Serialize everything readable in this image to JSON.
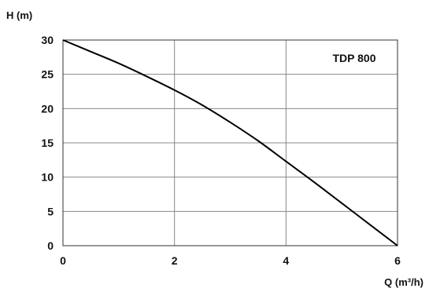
{
  "chart_data": {
    "type": "line",
    "title": "",
    "annotation": "TDP 800",
    "xlabel": "Q (m³/h)",
    "ylabel": "H (m)",
    "xlim": [
      0,
      6
    ],
    "ylim": [
      0,
      30
    ],
    "xticks": [
      "0",
      "2",
      "4",
      "6"
    ],
    "yticks": [
      "0",
      "5",
      "10",
      "15",
      "20",
      "25",
      "30"
    ],
    "grid": true,
    "series": [
      {
        "color": "#000000",
        "x": [
          0,
          0.5,
          1,
          1.5,
          2,
          2.5,
          3,
          3.5,
          4,
          4.5,
          5,
          5.5,
          6
        ],
        "y": [
          30,
          28.3,
          26.6,
          24.7,
          22.7,
          20.5,
          18,
          15.3,
          12.3,
          9.3,
          6.2,
          3.1,
          0
        ]
      }
    ]
  }
}
